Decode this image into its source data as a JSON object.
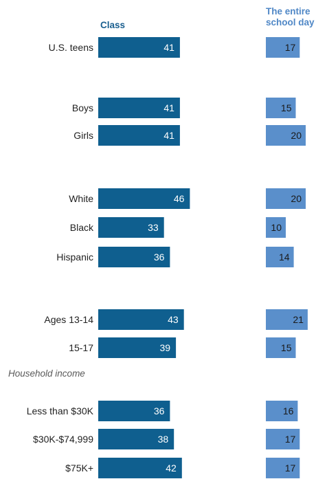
{
  "chart_data": {
    "type": "bar",
    "categories": [
      "U.S. teens",
      "Boys",
      "Girls",
      "White",
      "Black",
      "Hispanic",
      "Ages 13-14",
      "15-17",
      "Less than $30K",
      "$30K-$74,999",
      "$75K+"
    ],
    "series": [
      {
        "name": "Class",
        "values": [
          41,
          41,
          41,
          46,
          33,
          36,
          43,
          39,
          36,
          38,
          42
        ],
        "color": "#0f5f8f"
      },
      {
        "name": "The entire school day",
        "values": [
          17,
          15,
          20,
          20,
          10,
          14,
          21,
          15,
          16,
          17,
          17
        ],
        "color": "#5a8fcb"
      }
    ],
    "section_labels": [
      "Household income"
    ]
  },
  "headers": {
    "class": "Class",
    "day_line1": "The entire",
    "day_line2": "school day"
  }
}
